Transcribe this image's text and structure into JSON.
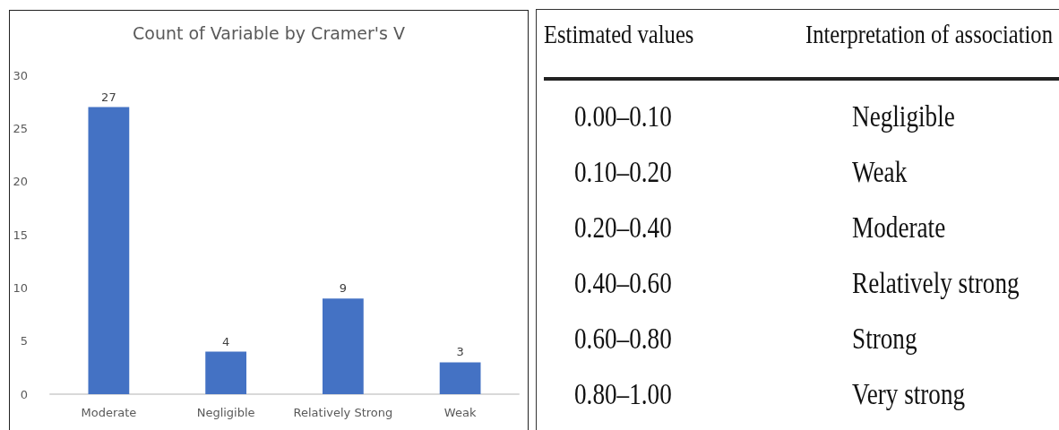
{
  "chart_data": [
    {
      "type": "bar",
      "title": "Count of Variable by Cramer's V",
      "categories": [
        "Moderate",
        "Negligible",
        "Relatively Strong",
        "Weak"
      ],
      "values": [
        27,
        4,
        9,
        3
      ],
      "color": "#4472c4",
      "ylim": [
        0,
        30
      ],
      "yticks": [
        0,
        5,
        10,
        15,
        20,
        25,
        30
      ],
      "data_labels": true
    },
    {
      "type": "other",
      "annotations": [
        "Estimated values",
        "Interpretation of association",
        "0.00–0.10",
        "Negligible",
        "0.10–0.20",
        "Weak",
        "0.20–0.40",
        "Moderate",
        "0.40–0.60",
        "Relatively strong",
        "0.60–0.80",
        "Strong",
        "0.80–1.00",
        "Very strong"
      ]
    }
  ]
}
